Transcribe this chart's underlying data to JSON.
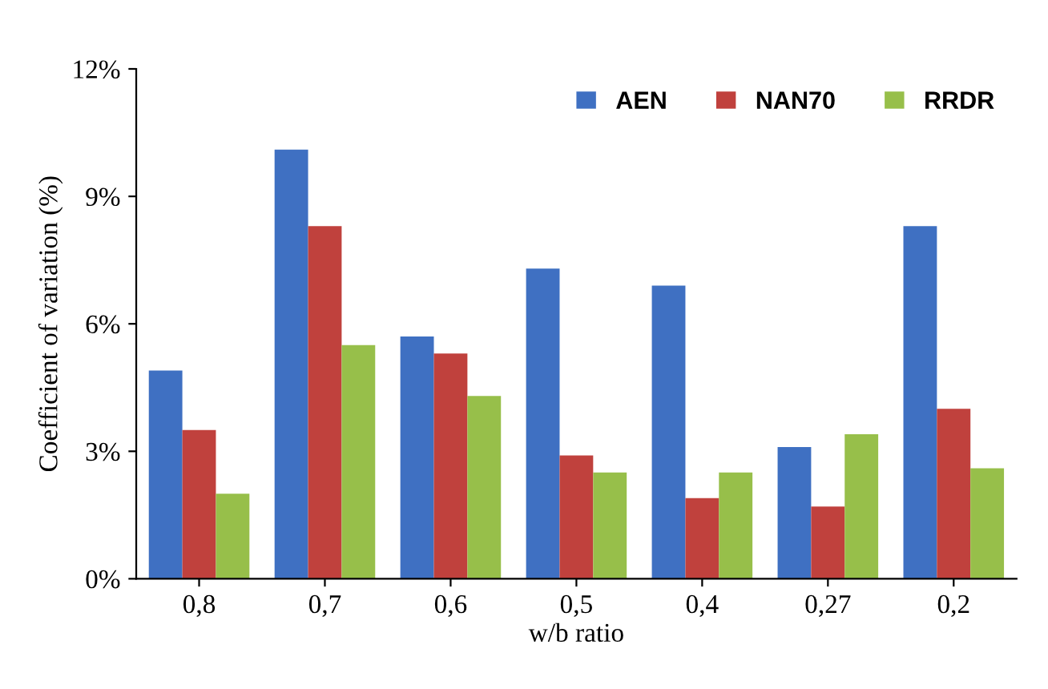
{
  "chart_data": {
    "type": "bar",
    "xlabel": "w/b ratio",
    "ylabel": "Coefficient of variation (%)",
    "categories": [
      "0,8",
      "0,7",
      "0,6",
      "0,5",
      "0,4",
      "0,27",
      "0,2"
    ],
    "series": [
      {
        "name": "AEN",
        "color": "#3f70c2",
        "values": [
          4.9,
          10.1,
          5.7,
          7.3,
          6.9,
          3.1,
          8.3
        ]
      },
      {
        "name": "NAN70",
        "color": "#c0413d",
        "values": [
          3.5,
          8.3,
          5.3,
          2.9,
          1.9,
          1.7,
          4.0
        ]
      },
      {
        "name": "RRDR",
        "color": "#97bf4a",
        "values": [
          2.0,
          5.5,
          4.3,
          2.5,
          2.5,
          3.4,
          2.6
        ]
      }
    ],
    "ylim": [
      0,
      12
    ],
    "yticks": [
      {
        "value": 0,
        "label": "0%"
      },
      {
        "value": 3,
        "label": "3%"
      },
      {
        "value": 6,
        "label": "6%"
      },
      {
        "value": 9,
        "label": "9%"
      },
      {
        "value": 12,
        "label": "12%"
      }
    ],
    "grid": false,
    "legend": "top right"
  }
}
